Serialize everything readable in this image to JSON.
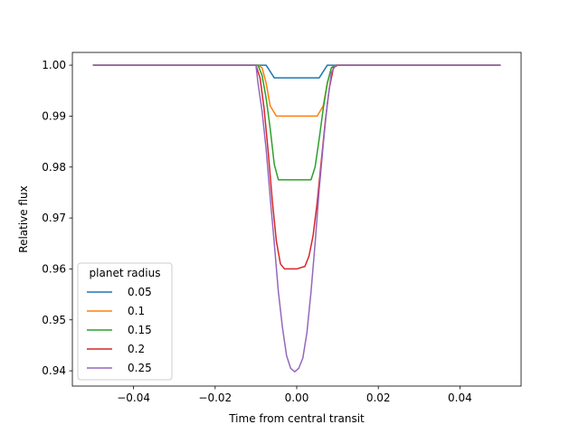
{
  "chart_data": {
    "type": "line",
    "title": "",
    "xlabel": "Time from central transit",
    "ylabel": "Relative flux",
    "xlim": [
      -0.055,
      0.055
    ],
    "ylim": [
      0.937,
      1.0025
    ],
    "xticks": [
      -0.04,
      -0.02,
      0.0,
      0.02,
      0.04
    ],
    "xtick_labels": [
      "−0.04",
      "−0.02",
      "0.00",
      "0.02",
      "0.04"
    ],
    "yticks": [
      0.94,
      0.95,
      0.96,
      0.97,
      0.98,
      0.99,
      1.0
    ],
    "ytick_labels": [
      "0.94",
      "0.95",
      "0.96",
      "0.97",
      "0.98",
      "0.99",
      "1.00"
    ],
    "grid": false,
    "legend": {
      "title": "planet radius",
      "position": "lower left"
    },
    "series": [
      {
        "name": "0.05",
        "color": "#1f77b4",
        "points": [
          [
            -0.05,
            1.0
          ],
          [
            -0.0085,
            1.0
          ],
          [
            -0.0075,
            1.0
          ],
          [
            -0.0055,
            0.9975
          ],
          [
            0.0,
            0.9975
          ],
          [
            0.0055,
            0.9975
          ],
          [
            0.0075,
            1.0
          ],
          [
            0.0085,
            1.0
          ],
          [
            0.05,
            1.0
          ]
        ]
      },
      {
        "name": "0.1",
        "color": "#ff7f0e",
        "points": [
          [
            -0.05,
            1.0
          ],
          [
            -0.0095,
            1.0
          ],
          [
            -0.0085,
            0.9995
          ],
          [
            -0.0075,
            0.9965
          ],
          [
            -0.0065,
            0.992
          ],
          [
            -0.005,
            0.99
          ],
          [
            0.0,
            0.99
          ],
          [
            0.005,
            0.99
          ],
          [
            0.0065,
            0.992
          ],
          [
            0.0075,
            0.9965
          ],
          [
            0.0085,
            0.9995
          ],
          [
            0.0095,
            1.0
          ],
          [
            0.05,
            1.0
          ]
        ]
      },
      {
        "name": "0.15",
        "color": "#2ca02c",
        "points": [
          [
            -0.05,
            1.0
          ],
          [
            -0.0095,
            1.0
          ],
          [
            -0.0085,
            0.998
          ],
          [
            -0.0075,
            0.9935
          ],
          [
            -0.0065,
            0.9875
          ],
          [
            -0.0055,
            0.9805
          ],
          [
            -0.0045,
            0.9775
          ],
          [
            0.0,
            0.9775
          ],
          [
            0.0035,
            0.9775
          ],
          [
            0.0045,
            0.98
          ],
          [
            0.0055,
            0.9855
          ],
          [
            0.0065,
            0.9915
          ],
          [
            0.0075,
            0.9965
          ],
          [
            0.0085,
            0.9995
          ],
          [
            0.0095,
            1.0
          ],
          [
            0.05,
            1.0
          ]
        ]
      },
      {
        "name": "0.2",
        "color": "#d62728",
        "points": [
          [
            -0.05,
            1.0
          ],
          [
            -0.01,
            1.0
          ],
          [
            -0.009,
            0.9975
          ],
          [
            -0.008,
            0.9915
          ],
          [
            -0.007,
            0.983
          ],
          [
            -0.006,
            0.9735
          ],
          [
            -0.005,
            0.9655
          ],
          [
            -0.004,
            0.961
          ],
          [
            -0.003,
            0.96
          ],
          [
            0.0,
            0.96
          ],
          [
            0.002,
            0.9605
          ],
          [
            0.003,
            0.9625
          ],
          [
            0.004,
            0.9665
          ],
          [
            0.005,
            0.973
          ],
          [
            0.006,
            0.981
          ],
          [
            0.007,
            0.989
          ],
          [
            0.008,
            0.9955
          ],
          [
            0.009,
            0.9995
          ],
          [
            0.01,
            1.0
          ],
          [
            0.05,
            1.0
          ]
        ]
      },
      {
        "name": "0.25",
        "color": "#9467bd",
        "points": [
          [
            -0.05,
            1.0
          ],
          [
            -0.01,
            1.0
          ],
          [
            -0.0095,
            0.9965
          ],
          [
            -0.0085,
            0.991
          ],
          [
            -0.0075,
            0.9835
          ],
          [
            -0.0065,
            0.974
          ],
          [
            -0.0055,
            0.965
          ],
          [
            -0.0045,
            0.9555
          ],
          [
            -0.0035,
            0.9485
          ],
          [
            -0.0025,
            0.943
          ],
          [
            -0.0015,
            0.9405
          ],
          [
            -0.0005,
            0.9398
          ],
          [
            0.0005,
            0.9405
          ],
          [
            0.0015,
            0.9425
          ],
          [
            0.0025,
            0.9475
          ],
          [
            0.0035,
            0.9555
          ],
          [
            0.0045,
            0.965
          ],
          [
            0.0055,
            0.9755
          ],
          [
            0.0065,
            0.9845
          ],
          [
            0.0075,
            0.9925
          ],
          [
            0.0085,
            0.9985
          ],
          [
            0.0095,
            1.0
          ],
          [
            0.05,
            1.0
          ]
        ]
      }
    ]
  }
}
